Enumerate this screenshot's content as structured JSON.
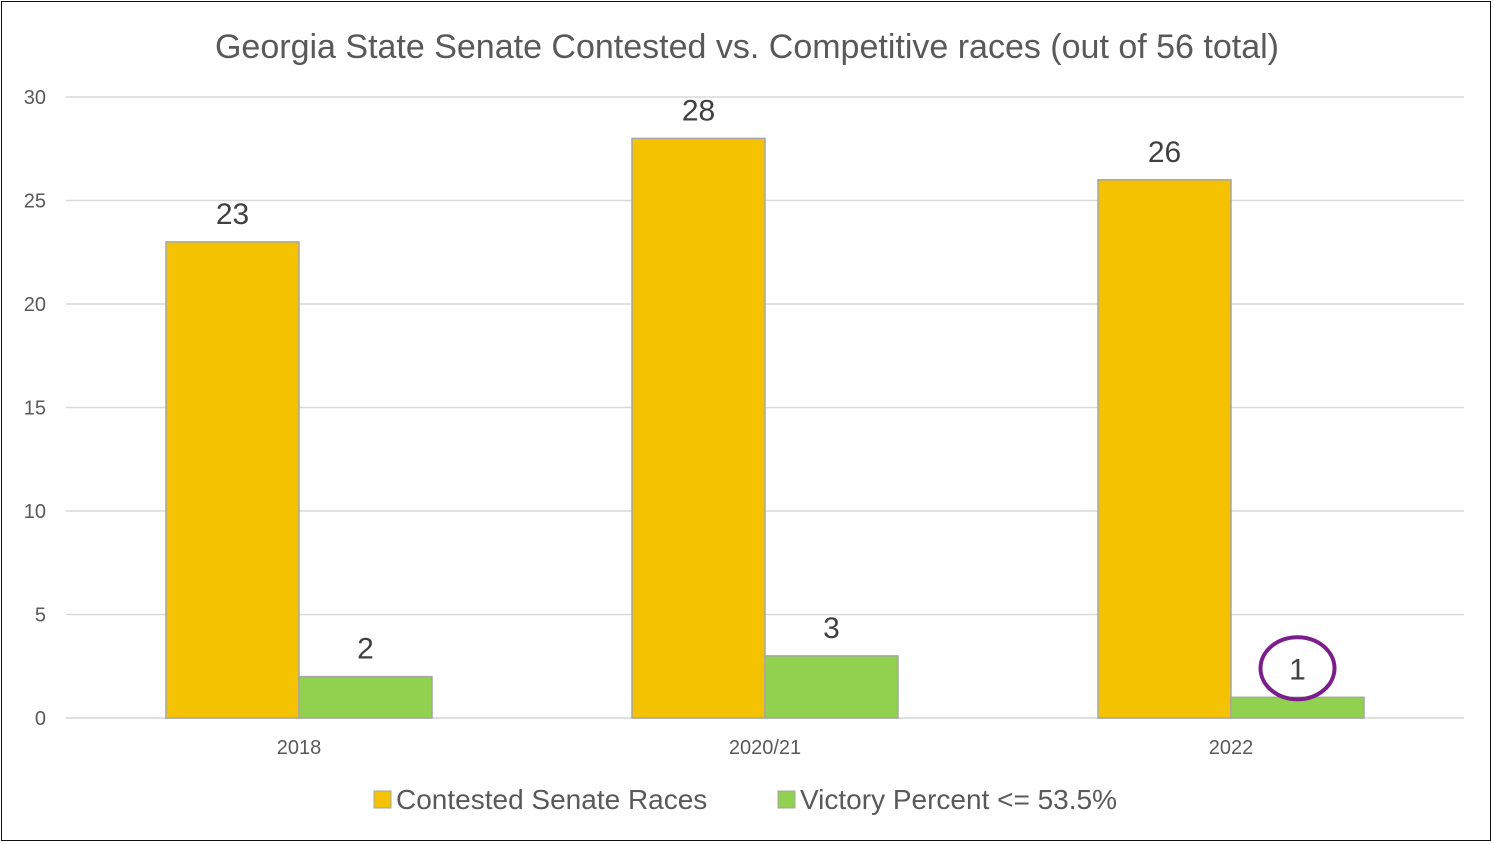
{
  "colors": {
    "contested": "#F4C200",
    "victory": "#92D050",
    "bar_stroke": "#A6A6A6",
    "grid": "#D9D9D9",
    "highlight_circle": "#7B1E8C"
  },
  "chart_data": {
    "type": "bar",
    "title": "Georgia State Senate Contested vs. Competitive races (out of 56 total)",
    "categories": [
      "2018",
      "2020/21",
      "2022"
    ],
    "series": [
      {
        "name": "Contested Senate Races",
        "values": [
          23,
          28,
          26
        ]
      },
      {
        "name": "Victory Percent <= 53.5%",
        "values": [
          2,
          3,
          1
        ]
      }
    ],
    "ylim": [
      0,
      30
    ],
    "yticks": [
      "0",
      "5",
      "10",
      "15",
      "20",
      "25",
      "30"
    ],
    "grid": true,
    "legend": "bottom",
    "data_labels": true,
    "highlight": {
      "category": "2022",
      "series": "Victory Percent <= 53.5%",
      "shape": "circle"
    }
  }
}
